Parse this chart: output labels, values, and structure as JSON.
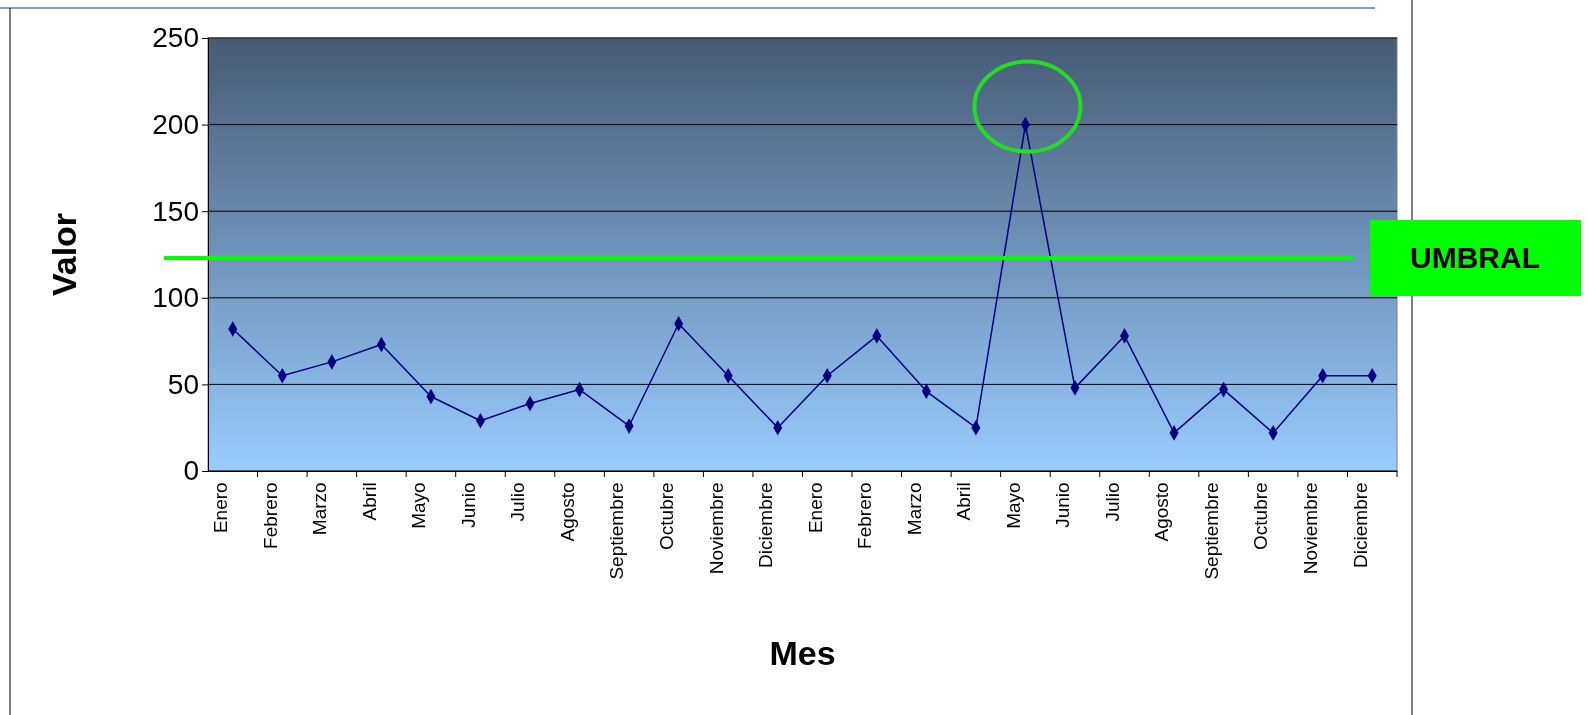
{
  "chart_data": {
    "type": "line",
    "xlabel": "Mes",
    "ylabel": "Valor",
    "categories": [
      "Enero",
      "Febrero",
      "Marzo",
      "Abril",
      "Mayo",
      "Junio",
      "Julio",
      "Agosto",
      "Septiembre",
      "Octubre",
      "Noviembre",
      "Diciembre",
      "Enero",
      "Febrero",
      "Marzo",
      "Abril",
      "Mayo",
      "Junio",
      "Julio",
      "Agosto",
      "Septiembre",
      "Octubre",
      "Noviembre",
      "Diciembre"
    ],
    "series": [
      {
        "color": "#000080",
        "values": [
          82,
          55,
          63,
          73,
          43,
          29,
          39,
          47,
          26,
          85,
          55,
          25,
          55,
          78,
          46,
          25,
          200,
          48,
          78,
          22,
          47,
          22,
          55,
          55
        ]
      }
    ],
    "ylim": [
      0,
      250
    ],
    "yticks": [
      0,
      50,
      100,
      150,
      200,
      250
    ],
    "grid": "y",
    "marker": "diamond",
    "line_style": "solid",
    "ref_lines": [
      {
        "axis": "y",
        "value": 123,
        "label": "UMBRAL",
        "color": "#00ff00"
      }
    ]
  }
}
